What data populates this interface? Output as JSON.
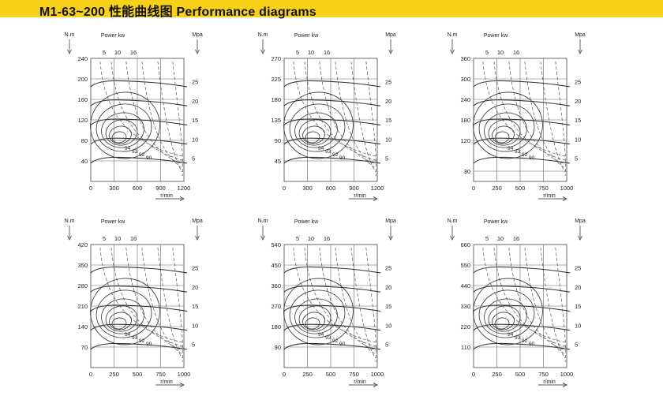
{
  "header": {
    "title": "M1-63~200 性能曲线图  Performance diagrams",
    "accent_color": "#f7d117"
  },
  "labels": {
    "torque_unit": "N.m",
    "power": "Power kw",
    "pressure_unit": "Mpa",
    "speed_unit": "r/min"
  },
  "chart_data": [
    {
      "type": "line",
      "x_ticks": [
        0,
        300,
        600,
        900,
        1200
      ],
      "xlim": [
        0,
        1200
      ],
      "y_ticks": [
        40,
        80,
        120,
        160,
        200,
        240
      ],
      "ylim": [
        0,
        240
      ],
      "pressure_ticks": [
        5,
        10,
        15,
        20,
        25
      ],
      "power_labels": [
        "5",
        "10",
        "16"
      ],
      "efficiency_labels": [
        "94",
        "93",
        "92",
        "90"
      ],
      "grid": true
    },
    {
      "type": "line",
      "x_ticks": [
        0,
        300,
        600,
        900,
        1200
      ],
      "xlim": [
        0,
        1200
      ],
      "y_ticks": [
        45,
        90,
        135,
        180,
        225,
        270
      ],
      "ylim": [
        0,
        270
      ],
      "pressure_ticks": [
        5,
        10,
        15,
        20,
        25
      ],
      "power_labels": [
        "5",
        "10",
        "16"
      ],
      "efficiency_labels": [
        "94",
        "93",
        "92",
        "90"
      ],
      "grid": true
    },
    {
      "type": "line",
      "x_ticks": [
        0,
        250,
        500,
        750,
        1000
      ],
      "xlim": [
        0,
        1000
      ],
      "y_ticks": [
        30,
        120,
        180,
        240,
        300,
        360
      ],
      "ylim": [
        0,
        360
      ],
      "pressure_ticks": [
        5,
        10,
        15,
        20,
        25
      ],
      "power_labels": [
        "5",
        "10",
        "16"
      ],
      "efficiency_labels": [
        "94",
        "93",
        "92",
        "90"
      ],
      "grid": true
    },
    {
      "type": "line",
      "x_ticks": [
        0,
        250,
        500,
        750,
        1000
      ],
      "xlim": [
        0,
        1000
      ],
      "y_ticks": [
        70,
        140,
        210,
        280,
        350,
        420
      ],
      "ylim": [
        0,
        420
      ],
      "pressure_ticks": [
        5,
        10,
        15,
        20,
        25
      ],
      "power_labels": [
        "5",
        "10",
        "16"
      ],
      "efficiency_labels": [
        "94",
        "93",
        "92",
        "90"
      ],
      "grid": true
    },
    {
      "type": "line",
      "x_ticks": [
        0,
        250,
        500,
        750,
        1000
      ],
      "xlim": [
        0,
        1000
      ],
      "y_ticks": [
        90,
        180,
        270,
        360,
        450,
        540
      ],
      "ylim": [
        0,
        540
      ],
      "pressure_ticks": [
        5,
        10,
        15,
        20,
        25
      ],
      "power_labels": [
        "5",
        "10",
        "16"
      ],
      "efficiency_labels": [
        "94",
        "93",
        "92",
        "90"
      ],
      "grid": true
    },
    {
      "type": "line",
      "x_ticks": [
        0,
        250,
        500,
        750,
        1000
      ],
      "xlim": [
        0,
        1000
      ],
      "y_ticks": [
        110,
        220,
        330,
        440,
        550,
        660
      ],
      "ylim": [
        0,
        660
      ],
      "pressure_ticks": [
        5,
        10,
        15,
        20,
        25
      ],
      "power_labels": [
        "5",
        "10",
        "16"
      ],
      "efficiency_labels": [
        "94",
        "93",
        "92",
        "90"
      ],
      "grid": true
    }
  ]
}
